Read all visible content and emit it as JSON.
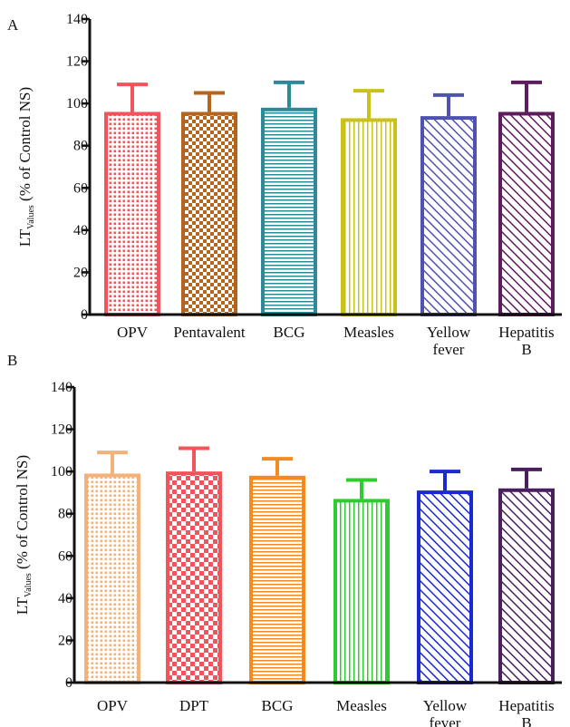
{
  "chart_data": [
    {
      "type": "bar",
      "panel_label": "A",
      "ylabel_main": "LT",
      "ylabel_sub": "Values",
      "ylabel_rest": " (% of Control NS)",
      "ylim": [
        0,
        140
      ],
      "yticks": [
        "0",
        "20",
        "40",
        "60",
        "80",
        "100",
        "120",
        "140"
      ],
      "categories": [
        [
          "OPV"
        ],
        [
          "Pentavalent"
        ],
        [
          "BCG"
        ],
        [
          "Measles"
        ],
        [
          "Yellow",
          "fever"
        ],
        [
          "Hepatitis",
          "B"
        ]
      ],
      "values": [
        96,
        96,
        98,
        93,
        94,
        96
      ],
      "errors": [
        13,
        9,
        12,
        13,
        10,
        14
      ],
      "colors": [
        "#f2545b",
        "#b5651d",
        "#2a8a9a",
        "#c8c21a",
        "#4f52b0",
        "#5e1c5e"
      ],
      "patterns": [
        "dots",
        "checker-small",
        "hlines",
        "vlines",
        "diag",
        "diag"
      ]
    },
    {
      "type": "bar",
      "panel_label": "B",
      "ylabel_main": "LT",
      "ylabel_sub": "Values",
      "ylabel_rest": " (% of Control NS)",
      "ylim": [
        0,
        140
      ],
      "yticks": [
        "0",
        "20",
        "40",
        "60",
        "80",
        "100",
        "120",
        "140"
      ],
      "categories": [
        [
          "OPV"
        ],
        [
          "DPT"
        ],
        [
          "BCG"
        ],
        [
          "Measles"
        ],
        [
          "Yellow",
          "fever"
        ],
        [
          "Hepatitis",
          "B"
        ]
      ],
      "values": [
        99,
        100,
        98,
        87,
        91,
        92
      ],
      "errors": [
        10,
        11,
        8,
        9,
        9,
        9
      ],
      "colors": [
        "#f3b27a",
        "#f2545b",
        "#f58a1f",
        "#2ecc2e",
        "#1a2ad0",
        "#4a1f5e"
      ],
      "patterns": [
        "dots",
        "checker",
        "hlines",
        "vlines",
        "diag",
        "diag"
      ]
    }
  ]
}
